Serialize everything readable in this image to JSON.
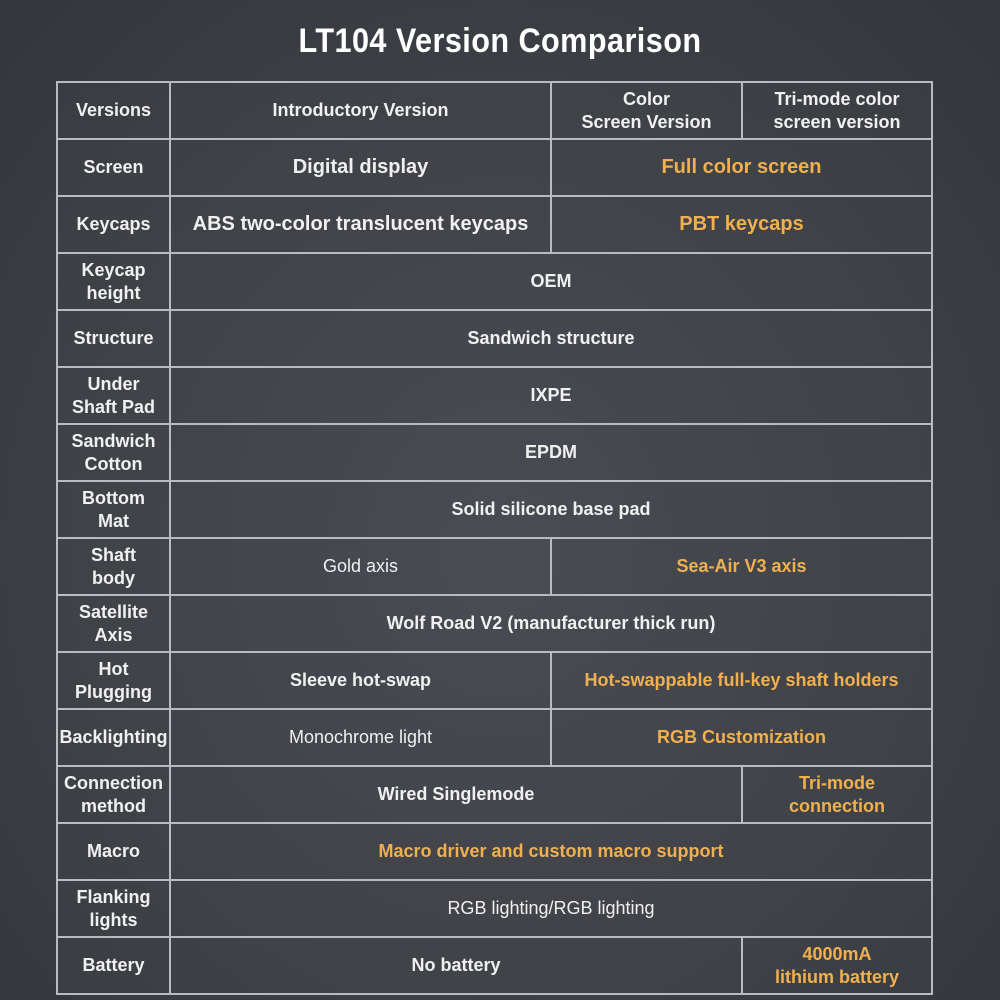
{
  "title": "LT104 Version Comparison",
  "colors": {
    "background": "#3c3f45",
    "border": "#b8bbc0",
    "text": "#f0f0f0",
    "highlight": "#f0b04e"
  },
  "rows": {
    "versions": {
      "label": "Versions",
      "intro": "Introductory Version",
      "color": "Color\nScreen Version",
      "trimode": "Tri-mode color\nscreen version"
    },
    "screen": {
      "label": "Screen",
      "intro": "Digital display",
      "upgraded": "Full color screen"
    },
    "keycaps": {
      "label": "Keycaps",
      "intro": "ABS two-color translucent keycaps",
      "upgraded": "PBT keycaps"
    },
    "keycap_height": {
      "label": "Keycap\nheight",
      "all": "OEM"
    },
    "structure": {
      "label": "Structure",
      "all": "Sandwich structure"
    },
    "under_shaft_pad": {
      "label": "Under\nShaft Pad",
      "all": "IXPE"
    },
    "sandwich_cotton": {
      "label": "Sandwich\nCotton",
      "all": "EPDM"
    },
    "bottom_mat": {
      "label": "Bottom\nMat",
      "all": "Solid silicone base pad"
    },
    "shaft_body": {
      "label": "Shaft\nbody",
      "intro": "Gold axis",
      "upgraded": "Sea-Air V3 axis"
    },
    "satellite_axis": {
      "label": "Satellite\nAxis",
      "all": "Wolf Road V2 (manufacturer thick run)"
    },
    "hot_plugging": {
      "label": "Hot\nPlugging",
      "intro": "Sleeve hot-swap",
      "upgraded": "Hot-swappable full-key shaft holders"
    },
    "backlighting": {
      "label": "Backlighting",
      "intro": "Monochrome light",
      "upgraded": "RGB Customization"
    },
    "connection": {
      "label": "Connection\nmethod",
      "wired": "Wired Singlemode",
      "trimode": "Tri-mode\nconnection"
    },
    "macro": {
      "label": "Macro",
      "all": "Macro driver and custom macro support"
    },
    "flanking_lights": {
      "label": "Flanking\nlights",
      "all": "RGB lighting/RGB lighting"
    },
    "battery": {
      "label": "Battery",
      "none": "No battery",
      "trimode": "4000mA\nlithium battery"
    }
  }
}
